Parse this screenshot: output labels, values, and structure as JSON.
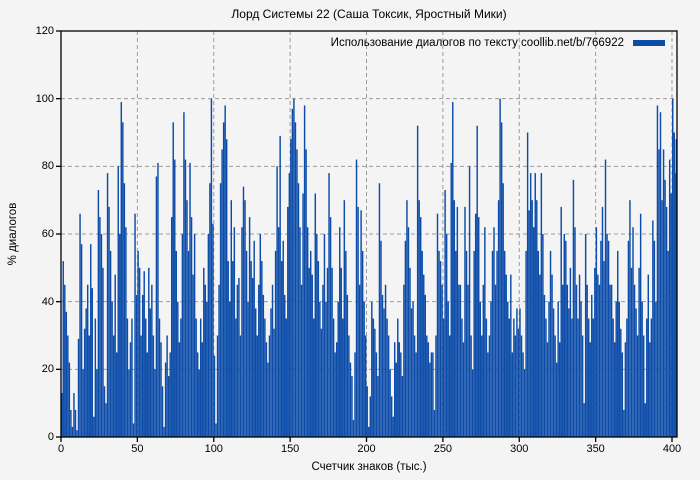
{
  "title": "Лорд Системы 22 (Саша Токсик, Яростный Мики)",
  "legend": {
    "label": "Использование диалогов по тексту coollib.net/b/766922",
    "swatch_color": "#0d4da9"
  },
  "axes": {
    "ylabel": "% диалогов",
    "xlabel": "Счетчик знаков (тыс.)"
  },
  "colors": {
    "background": "#f4f4f4",
    "bar": "#0d4da9",
    "border": "#000000",
    "grid": "#9a9a9a"
  },
  "chart_data": {
    "type": "bar",
    "title": "Лорд Системы 22 (Саша Токсик, Яростный Мики)",
    "xlabel": "Счетчик знаков (тыс.)",
    "ylabel": "% диалогов",
    "legend_entry": "Использование диалогов по тексту coollib.net/b/766922",
    "legend_position": "top-right",
    "grid": true,
    "xlim": [
      0,
      404
    ],
    "ylim": [
      0,
      120
    ],
    "xticks": [
      0,
      50,
      100,
      150,
      200,
      250,
      300,
      350,
      400
    ],
    "yticks": [
      0,
      20,
      40,
      60,
      80,
      100,
      120
    ],
    "x_step": 1,
    "values": [
      13,
      52,
      45,
      37,
      30,
      22,
      8,
      3,
      13,
      8,
      2,
      29,
      66,
      57,
      20,
      32,
      38,
      45,
      30,
      57,
      44,
      6,
      35,
      20,
      73,
      65,
      60,
      50,
      15,
      10,
      78,
      68,
      55,
      40,
      30,
      48,
      25,
      80,
      60,
      99,
      93,
      75,
      62,
      35,
      20,
      28,
      35,
      4,
      66,
      42,
      55,
      50,
      30,
      42,
      49,
      35,
      25,
      50,
      38,
      45,
      30,
      20,
      77,
      81,
      35,
      28,
      15,
      3,
      22,
      30,
      18,
      25,
      65,
      93,
      82,
      55,
      40,
      28,
      35,
      60,
      96,
      82,
      70,
      55,
      81,
      65,
      48,
      60,
      35,
      25,
      20,
      35,
      28,
      50,
      45,
      40,
      60,
      75,
      100,
      63,
      24,
      4,
      30,
      45,
      75,
      85,
      93,
      98,
      88,
      52,
      40,
      70,
      52,
      62,
      35,
      45,
      47,
      30,
      62,
      74,
      70,
      55,
      40,
      65,
      52,
      47,
      58,
      38,
      30,
      45,
      60,
      52,
      42,
      35,
      28,
      22,
      30,
      38,
      45,
      32,
      55,
      80,
      62,
      89,
      52,
      58,
      42,
      35,
      68,
      78,
      88,
      97,
      100,
      93,
      85,
      75,
      62,
      45,
      72,
      98,
      85,
      62,
      50,
      55,
      48,
      35,
      72,
      60,
      52,
      40,
      32,
      45,
      60,
      40,
      50,
      78,
      65,
      50,
      35,
      25,
      28,
      40,
      62,
      50,
      35,
      70,
      55,
      42,
      30,
      22,
      18,
      5,
      25,
      82,
      68,
      45,
      67,
      55,
      40,
      30,
      15,
      3,
      12,
      40,
      35,
      32,
      25,
      18,
      75,
      58,
      42,
      38,
      45,
      35,
      30,
      20,
      12,
      6,
      28,
      22,
      35,
      28,
      25,
      18,
      45,
      58,
      70,
      62,
      50,
      38,
      40,
      30,
      25,
      92,
      70,
      65,
      55,
      48,
      42,
      30,
      28,
      22,
      25,
      25,
      8,
      30,
      66,
      55,
      52,
      45,
      35,
      73,
      60,
      40,
      30,
      81,
      99,
      70,
      55,
      68,
      45,
      45,
      35,
      28,
      68,
      55,
      45,
      80,
      30,
      20,
      55,
      66,
      92,
      65,
      40,
      30,
      45,
      62,
      35,
      25,
      30,
      40,
      55,
      62,
      45,
      55,
      70,
      100,
      93,
      75,
      55,
      48,
      40,
      35,
      48,
      25,
      35,
      30,
      38,
      32,
      38,
      30,
      25,
      20,
      55,
      90,
      67,
      78,
      70,
      62,
      78,
      70,
      55,
      48,
      78,
      60,
      42,
      35,
      28,
      40,
      55,
      48,
      38,
      30,
      22,
      40,
      28,
      68,
      45,
      60,
      58,
      45,
      38,
      50,
      35,
      76,
      62,
      45,
      35,
      48,
      40,
      30,
      10,
      60,
      45,
      35,
      28,
      42,
      35,
      50,
      62,
      48,
      45,
      58,
      68,
      52,
      82,
      60,
      58,
      45,
      45,
      35,
      28,
      40,
      55,
      40,
      32,
      25,
      8,
      28,
      35,
      58,
      70,
      50,
      62,
      45,
      38,
      30,
      50,
      66,
      40,
      30,
      10,
      35,
      48,
      28,
      35,
      64,
      58,
      40,
      98,
      85,
      96,
      70,
      85,
      76,
      68,
      55,
      82,
      72,
      100,
      90,
      78,
      88
    ]
  }
}
